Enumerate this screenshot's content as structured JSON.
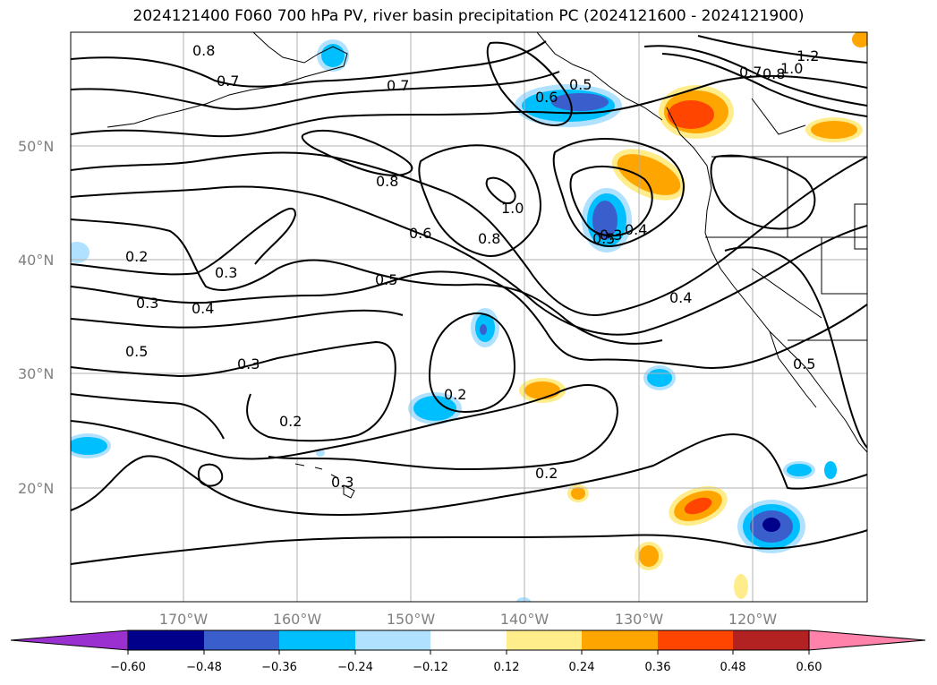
{
  "title": "2024121400 F060 700 hPa PV, river basin precipitation PC (2024121600 - 2024121900)",
  "map": {
    "lat_labels": [
      "50°N",
      "40°N",
      "30°N",
      "20°N"
    ],
    "lon_labels": [
      "170°W",
      "160°W",
      "150°W",
      "140°W",
      "130°W",
      "120°W"
    ],
    "contour_labels": [
      "0.8",
      "0.7",
      "0.7",
      "0.6",
      "0.5",
      "0.7",
      "0.8",
      "1.0",
      "1.2",
      "0.8",
      "1.0",
      "0.6",
      "0.8",
      "0.5",
      "0.4",
      "0.3",
      "0.2",
      "0.3",
      "0.4",
      "0.3",
      "0.5",
      "0.5",
      "0.3",
      "0.2",
      "0.2",
      "0.3",
      "0.2",
      "0.4",
      "0.5"
    ],
    "colors": {
      "coast": "#000000",
      "grid": "#b0b0b0",
      "contour": "#000000"
    }
  },
  "colorbar": {
    "colors": [
      "#9b30d0",
      "#00008b",
      "#3a5fcd",
      "#00bfff",
      "#b0e2ff",
      "#ffffff",
      "#ffec8b",
      "#ffa500",
      "#ff4500",
      "#b22222",
      "#ff82ab"
    ],
    "tick_labels": [
      "−0.60",
      "−0.48",
      "−0.36",
      "−0.24",
      "−0.12",
      "0.12",
      "0.24",
      "0.36",
      "0.48",
      "0.60"
    ]
  }
}
